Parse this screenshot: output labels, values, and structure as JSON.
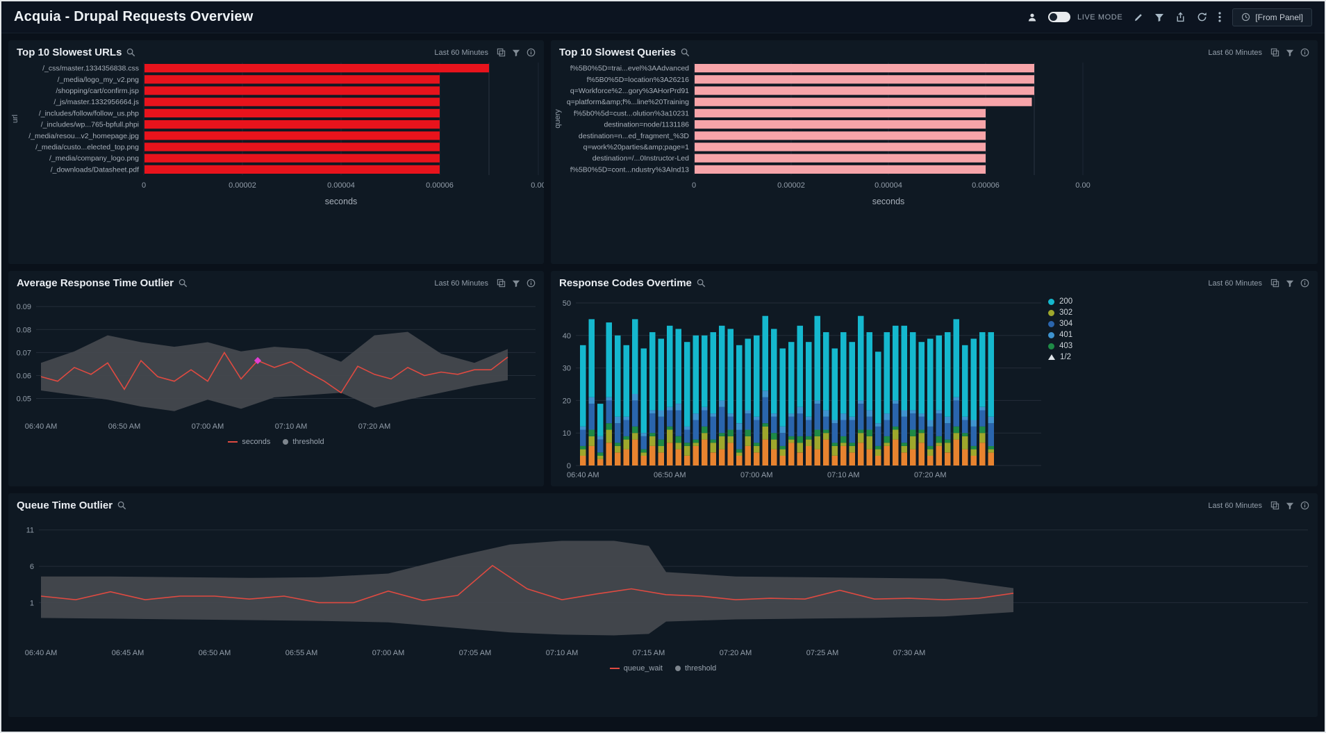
{
  "header": {
    "title": "Acquia - Drupal Requests Overview",
    "live_mode": "LIVE MODE",
    "from_panel": "[From Panel]"
  },
  "panels": [
    {
      "title": "Top 10 Slowest URLs",
      "time_range": "Last 60 Minutes"
    },
    {
      "title": "Top 10 Slowest Queries",
      "time_range": "Last 60 Minutes"
    },
    {
      "title": "Average Response Time Outlier",
      "time_range": "Last 60 Minutes"
    },
    {
      "title": "Response Codes Overtime",
      "time_range": "Last 60 Minutes"
    },
    {
      "title": "Queue Time Outlier",
      "time_range": "Last 60 Minutes"
    }
  ],
  "chart_data": [
    {
      "type": "bar",
      "orientation": "horizontal",
      "title": "Top 10 Slowest URLs",
      "xlabel": "seconds",
      "ylabel": "url",
      "bar_color": "#e8131c",
      "categories": [
        "/_css/master.1334356838.css",
        "/_media/logo_my_v2.png",
        "/shopping/cart/confirm.jsp",
        "/_js/master.1332956664.js",
        "/_includes/follow/follow_us.php",
        "/_includes/wp...765-bpfull.phpi",
        "/_media/resou...v2_homepage.jpg",
        "/_media/custo...elected_top.png",
        "/_media/company_logo.png",
        "/_downloads/Datasheet.pdf"
      ],
      "values": [
        7e-05,
        6e-05,
        6e-05,
        6e-05,
        6e-05,
        6e-05,
        6e-05,
        6e-05,
        6e-05,
        6e-05
      ],
      "xlim": [
        0,
        8e-05
      ],
      "xticks": [
        0,
        2e-05,
        4e-05,
        6e-05,
        8e-05
      ],
      "xtick_labels": [
        "0",
        "0.00002",
        "0.00004",
        "0.00006",
        "0.00"
      ]
    },
    {
      "type": "bar",
      "orientation": "horizontal",
      "title": "Top 10 Slowest Queries",
      "xlabel": "seconds",
      "ylabel": "query",
      "bar_color": "#f7a4a9",
      "categories": [
        "f%5B0%5D=trai...evel%3AAdvanced",
        "f%5B0%5D=location%3A26216",
        "q=Workforce%2...gory%3AHorPrd91",
        "q=platform&amp;f%...line%20Training",
        "f%5b0%5d=cust...olution%3a10231",
        "destination=node/1131186",
        "destination=n...ed_fragment_%3D",
        "q=work%20parties&amp;page=1",
        "destination=/...0Instructor-Led",
        "f%5B0%5D=cont...ndustry%3AInd13"
      ],
      "values": [
        7e-05,
        7e-05,
        7e-05,
        6.95e-05,
        6e-05,
        6e-05,
        6e-05,
        6e-05,
        6e-05,
        6e-05
      ],
      "xlim": [
        0,
        8e-05
      ],
      "xticks": [
        0,
        2e-05,
        4e-05,
        6e-05,
        8e-05
      ],
      "xtick_labels": [
        "0",
        "0.00002",
        "0.00004",
        "0.00006",
        "0.00"
      ]
    },
    {
      "type": "line",
      "title": "Average Response Time Outlier",
      "x_unit": "minutes since 06:40 AM",
      "x_step": 2,
      "series": [
        {
          "name": "seconds",
          "color": "#df4a41",
          "values": [
            0.0595,
            0.0575,
            0.0635,
            0.0605,
            0.0655,
            0.054,
            0.0665,
            0.0595,
            0.0575,
            0.0625,
            0.0575,
            0.07,
            0.0585,
            0.0665,
            0.0635,
            0.066,
            0.0615,
            0.0575,
            0.0525,
            0.064,
            0.0605,
            0.0585,
            0.0635,
            0.06,
            0.0615,
            0.0605,
            0.0625,
            0.0625,
            0.068
          ]
        }
      ],
      "band": {
        "name": "threshold",
        "color": "#45494f",
        "x": [
          0,
          4,
          8,
          12,
          16,
          20,
          24,
          28,
          32,
          36,
          40,
          44,
          48,
          52,
          56
        ],
        "upper": [
          0.0655,
          0.0705,
          0.0775,
          0.0745,
          0.0725,
          0.0745,
          0.0705,
          0.0725,
          0.0715,
          0.066,
          0.0775,
          0.079,
          0.0695,
          0.0655,
          0.0715
        ],
        "lower": [
          0.0535,
          0.0515,
          0.0495,
          0.0465,
          0.0445,
          0.0495,
          0.0455,
          0.0505,
          0.0515,
          0.0525,
          0.046,
          0.0495,
          0.0525,
          0.0555,
          0.058
        ]
      },
      "marker": {
        "x": 26,
        "y": 0.0665,
        "color": "#e23ed2"
      },
      "ylim": [
        0.042,
        0.094
      ],
      "yticks": [
        0.05,
        0.06,
        0.07,
        0.08,
        0.09
      ],
      "ytick_labels": [
        "0.05",
        "0.06",
        "0.07",
        "0.08",
        "0.09"
      ],
      "xticks": [
        {
          "min": 0,
          "label": "06:40 AM"
        },
        {
          "min": 10,
          "label": "06:50 AM"
        },
        {
          "min": 20,
          "label": "07:00 AM"
        },
        {
          "min": 30,
          "label": "07:10 AM"
        },
        {
          "min": 40,
          "label": "07:20 AM"
        }
      ],
      "legend": [
        {
          "label": "seconds",
          "color": "#df4a41",
          "shape": "line"
        },
        {
          "label": "threshold",
          "color": "#7e868e",
          "shape": "dot"
        }
      ]
    },
    {
      "type": "stacked_bar",
      "title": "Response Codes Overtime",
      "categories": [
        "06:40 AM",
        "06:41 AM",
        "06:42 AM",
        "06:43 AM",
        "06:44 AM",
        "06:45 AM",
        "06:46 AM",
        "06:47 AM",
        "06:48 AM",
        "06:49 AM",
        "06:50 AM",
        "06:51 AM",
        "06:52 AM",
        "06:53 AM",
        "06:54 AM",
        "06:55 AM",
        "06:56 AM",
        "06:57 AM",
        "06:58 AM",
        "06:59 AM",
        "07:00 AM",
        "07:01 AM",
        "07:02 AM",
        "07:03 AM",
        "07:04 AM",
        "07:05 AM",
        "07:06 AM",
        "07:07 AM",
        "07:08 AM",
        "07:09 AM",
        "07:10 AM",
        "07:11 AM",
        "07:12 AM",
        "07:13 AM",
        "07:14 AM",
        "07:15 AM",
        "07:16 AM",
        "07:17 AM",
        "07:18 AM",
        "07:19 AM",
        "07:20 AM",
        "07:21 AM",
        "07:22 AM",
        "07:23 AM",
        "07:24 AM",
        "07:25 AM",
        "07:26 AM",
        "07:27 AM"
      ],
      "series": [
        {
          "name": "",
          "color": "#e8832f",
          "values": [
            3,
            6,
            2,
            7,
            4,
            5,
            8,
            3,
            6,
            4,
            7,
            5,
            3,
            6,
            8,
            4,
            5,
            7,
            3,
            6,
            4,
            8,
            5,
            3,
            7,
            4,
            6,
            5,
            8,
            3,
            6,
            4,
            7,
            5,
            3,
            6,
            8,
            4,
            5,
            7,
            3,
            6,
            4,
            8,
            5,
            3,
            7,
            4
          ]
        },
        {
          "name": "302",
          "color": "#9ea72c",
          "values": [
            2,
            3,
            1,
            4,
            2,
            3,
            2,
            1,
            3,
            2,
            4,
            2,
            3,
            1,
            2,
            3,
            4,
            2,
            1,
            3,
            2,
            4,
            3,
            2,
            1,
            3,
            2,
            4,
            2,
            3,
            1,
            2,
            3,
            4,
            2,
            1,
            3,
            2,
            4,
            3,
            2,
            1,
            3,
            2,
            4,
            2,
            3,
            1
          ]
        },
        {
          "name": "403",
          "color": "#1e8a46",
          "values": [
            1,
            2,
            1,
            2,
            1,
            1,
            2,
            1,
            1,
            2,
            1,
            2,
            1,
            1,
            2,
            1,
            1,
            2,
            1,
            2,
            1,
            1,
            2,
            1,
            1,
            2,
            1,
            2,
            1,
            1,
            2,
            1,
            1,
            2,
            1,
            2,
            1,
            1,
            2,
            1,
            1,
            2,
            1,
            2,
            1,
            1,
            2,
            1
          ]
        },
        {
          "name": "304",
          "color": "#2a65ad",
          "values": [
            5,
            8,
            4,
            7,
            6,
            5,
            8,
            4,
            6,
            7,
            5,
            8,
            4,
            6,
            5,
            7,
            8,
            4,
            6,
            5,
            7,
            8,
            5,
            4,
            6,
            7,
            5,
            8,
            4,
            6,
            5,
            7,
            8,
            4,
            6,
            5,
            7,
            8,
            5,
            4,
            6,
            7,
            5,
            8,
            4,
            6,
            5,
            7
          ]
        },
        {
          "name": "401",
          "color": "#3e93cf",
          "values": [
            1,
            2,
            1,
            1,
            2,
            1,
            2,
            1,
            1,
            2,
            1,
            2,
            1,
            2,
            1,
            1,
            2,
            1,
            2,
            1,
            1,
            2,
            1,
            2,
            1,
            2,
            1,
            1,
            2,
            1,
            2,
            1,
            1,
            2,
            1,
            2,
            1,
            2,
            1,
            1,
            2,
            1,
            2,
            1,
            1,
            2,
            1,
            2
          ]
        },
        {
          "name": "200",
          "color": "#15b8ce",
          "values": [
            25,
            24,
            10,
            23,
            25,
            22,
            23,
            26,
            24,
            22,
            25,
            23,
            26,
            24,
            22,
            25,
            23,
            26,
            24,
            22,
            25,
            23,
            26,
            24,
            22,
            25,
            23,
            26,
            24,
            22,
            25,
            23,
            26,
            24,
            22,
            25,
            23,
            26,
            24,
            22,
            25,
            23,
            26,
            24,
            22,
            25,
            23,
            26
          ]
        }
      ],
      "ylim": [
        0,
        50
      ],
      "yticks": [
        0,
        10,
        20,
        30,
        40,
        50
      ],
      "ytick_labels": [
        "0",
        "10",
        "20",
        "30",
        "40",
        "50"
      ],
      "xticks": [
        {
          "index": 0,
          "label": "06:40 AM"
        },
        {
          "index": 10,
          "label": "06:50 AM"
        },
        {
          "index": 20,
          "label": "07:00 AM"
        },
        {
          "index": 30,
          "label": "07:10 AM"
        },
        {
          "index": 40,
          "label": "07:20 AM"
        }
      ],
      "legend": [
        {
          "label": "200",
          "color": "#15b8ce",
          "shape": "dot"
        },
        {
          "label": "302",
          "color": "#9ea72c",
          "shape": "dot"
        },
        {
          "label": "304",
          "color": "#2a65ad",
          "shape": "dot"
        },
        {
          "label": "401",
          "color": "#3e93cf",
          "shape": "dot"
        },
        {
          "label": "403",
          "color": "#1e8a46",
          "shape": "dot"
        },
        {
          "label": "1/2",
          "shape": "triangle"
        }
      ]
    },
    {
      "type": "line",
      "title": "Queue Time Outlier",
      "x_unit": "minutes since 06:40 AM",
      "x_step": 2,
      "series": [
        {
          "name": "queue_wait",
          "color": "#df4a41",
          "values": [
            1.9,
            1.4,
            2.5,
            1.4,
            1.9,
            1.9,
            1.5,
            1.9,
            1.0,
            1.0,
            2.6,
            1.3,
            2.0,
            6.1,
            2.9,
            1.4,
            2.2,
            2.9,
            2.1,
            1.9,
            1.4,
            1.6,
            1.5,
            2.7,
            1.5,
            1.6,
            1.4,
            1.6,
            2.3
          ]
        }
      ],
      "band": {
        "name": "threshold",
        "color": "#45494f",
        "x": [
          0,
          4,
          8,
          12,
          16,
          20,
          24,
          27,
          30,
          33,
          35,
          36,
          40,
          44,
          48,
          52,
          56
        ],
        "upper": [
          4.6,
          4.6,
          4.5,
          4.4,
          4.5,
          5.0,
          7.4,
          9.0,
          9.5,
          9.5,
          8.8,
          5.2,
          4.6,
          4.5,
          4.4,
          4.3,
          3.0
        ],
        "lower": [
          -1.1,
          -1.2,
          -1.3,
          -1.4,
          -1.5,
          -1.7,
          -2.5,
          -3.1,
          -3.4,
          -3.5,
          -3.3,
          -1.6,
          -1.3,
          -1.2,
          -1.1,
          -0.9,
          -0.3
        ]
      },
      "ylim": [
        -4.6,
        12.6
      ],
      "yticks": [
        1,
        6,
        11
      ],
      "ytick_labels": [
        "1",
        "6",
        "11"
      ],
      "xticks": [
        {
          "min": 0,
          "label": "06:40 AM"
        },
        {
          "min": 5,
          "label": "06:45 AM"
        },
        {
          "min": 10,
          "label": "06:50 AM"
        },
        {
          "min": 15,
          "label": "06:55 AM"
        },
        {
          "min": 20,
          "label": "07:00 AM"
        },
        {
          "min": 25,
          "label": "07:05 AM"
        },
        {
          "min": 30,
          "label": "07:10 AM"
        },
        {
          "min": 35,
          "label": "07:15 AM"
        },
        {
          "min": 40,
          "label": "07:20 AM"
        },
        {
          "min": 45,
          "label": "07:25 AM"
        },
        {
          "min": 50,
          "label": "07:30 AM"
        }
      ],
      "legend": [
        {
          "label": "queue_wait",
          "color": "#df4a41",
          "shape": "line"
        },
        {
          "label": "threshold",
          "color": "#7e868e",
          "shape": "dot"
        }
      ]
    }
  ]
}
